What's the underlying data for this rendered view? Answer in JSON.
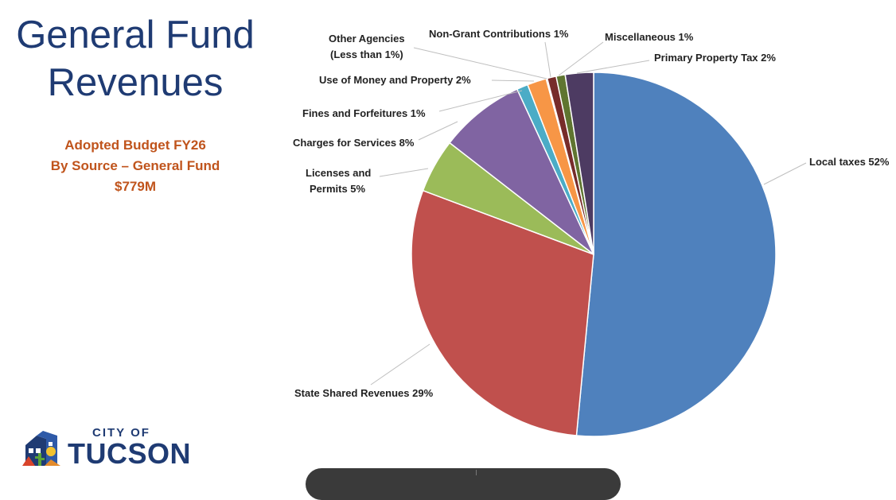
{
  "title": {
    "line1": "General Fund",
    "line2": "Revenues"
  },
  "subtitle": {
    "line1": "Adopted Budget FY26",
    "line2": "By Source – General Fund",
    "line3": "$779M"
  },
  "logo": {
    "city": "CITY OF",
    "name": "TUCSON"
  },
  "chart_data": {
    "type": "pie",
    "title": "General Fund Revenues",
    "start_angle_deg": 0,
    "direction": "clockwise",
    "slices": [
      {
        "name": "Local taxes",
        "pct_label": "52%",
        "value": 51.5,
        "color": "#4f81bd"
      },
      {
        "name": "State Shared Revenues",
        "pct_label": "29%",
        "value": 29.2,
        "color": "#c0504d"
      },
      {
        "name": "Licenses and Permits",
        "pct_label": "5%",
        "value": 4.8,
        "color": "#9bbb59"
      },
      {
        "name": "Charges for Services",
        "pct_label": "8%",
        "value": 7.6,
        "color": "#8064a2"
      },
      {
        "name": "Fines and Forfeitures",
        "pct_label": "1%",
        "value": 1.0,
        "color": "#4bacc6"
      },
      {
        "name": "Use of Money and Property",
        "pct_label": "2%",
        "value": 1.7,
        "color": "#f79646"
      },
      {
        "name": "Other Agencies (Less than 1%)",
        "pct_label": "",
        "value": 0.1,
        "color": "#2c4d75"
      },
      {
        "name": "Non-Grant Contributions",
        "pct_label": "1%",
        "value": 0.8,
        "color": "#772c2a"
      },
      {
        "name": "Miscellaneous",
        "pct_label": "1%",
        "value": 0.8,
        "color": "#5f7530"
      },
      {
        "name": "Primary Property Tax",
        "pct_label": "2%",
        "value": 2.5,
        "color": "#4d3b62"
      }
    ],
    "labels": {
      "local_taxes": "Local taxes 52%",
      "state_shared": "State Shared Revenues 29%",
      "licenses_1": "Licenses and",
      "licenses_2": "Permits 5%",
      "charges": "Charges for Services 8%",
      "fines": "Fines and Forfeitures 1%",
      "use_of_money": "Use of Money and Property 2%",
      "other_agencies_1": "Other Agencies",
      "other_agencies_2": "(Less than 1%)",
      "non_grant": "Non-Grant Contributions 1%",
      "miscellaneous": "Miscellaneous 1%",
      "primary_property": "Primary Property Tax 2%"
    }
  }
}
